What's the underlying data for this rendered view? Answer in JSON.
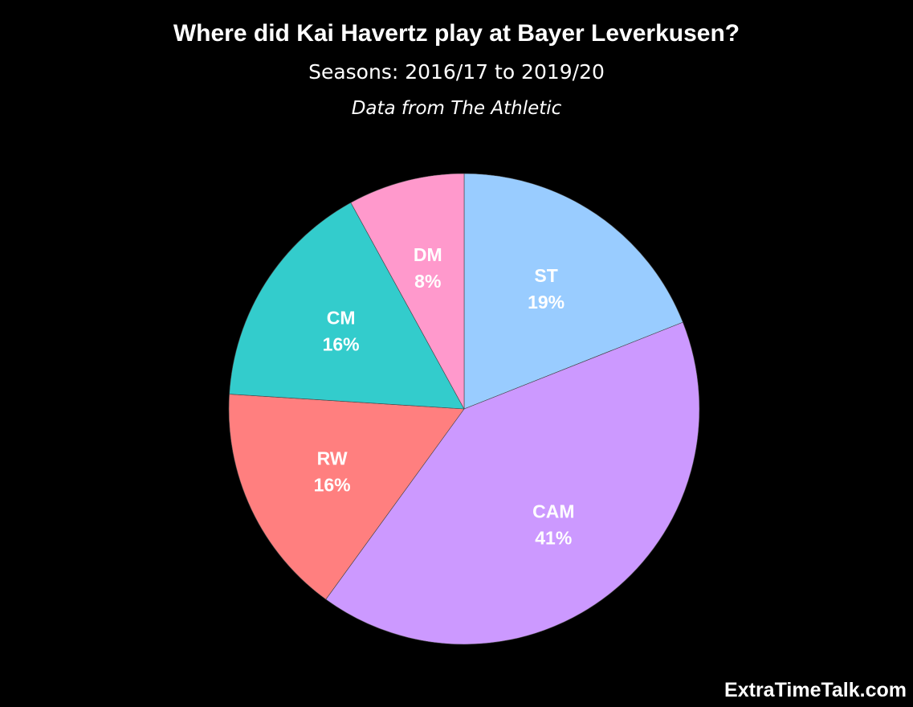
{
  "header": {
    "title": "Where did Kai Havertz play at Bayer Leverkusen?",
    "subtitle": "Seasons: 2016/17 to 2019/20",
    "source": "Data from The Athletic"
  },
  "watermark": "ExtraTimeTalk.com",
  "chart_data": {
    "type": "pie",
    "title": "Where did Kai Havertz play at Bayer Leverkusen?",
    "subtitle": "Seasons: 2016/17 to 2019/20",
    "start": "12 o'clock",
    "direction": "clockwise",
    "slices": [
      {
        "label": "ST",
        "value": 19,
        "display": "19%",
        "color": "#99ccff"
      },
      {
        "label": "CAM",
        "value": 41,
        "display": "41%",
        "color": "#cc99ff"
      },
      {
        "label": "RW",
        "value": 16,
        "display": "16%",
        "color": "#ff7f7f"
      },
      {
        "label": "CM",
        "value": 16,
        "display": "16%",
        "color": "#33cccc"
      },
      {
        "label": "DM",
        "value": 8,
        "display": "8%",
        "color": "#ff99cc"
      }
    ]
  }
}
